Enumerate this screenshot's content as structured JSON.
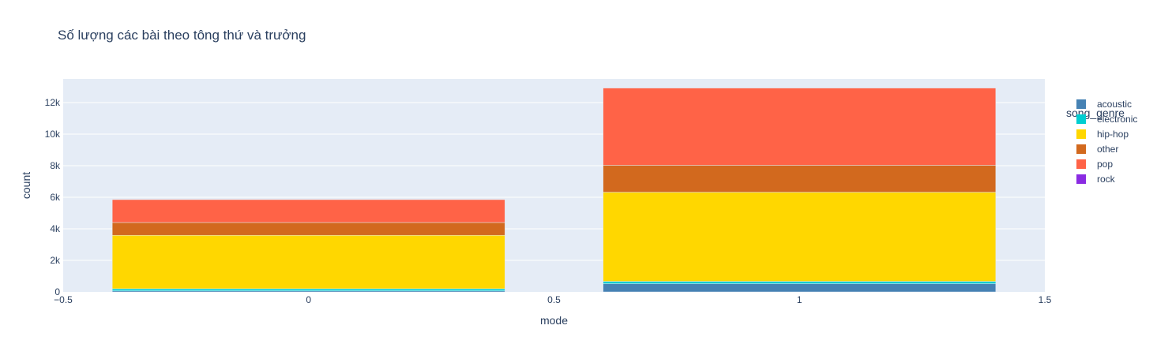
{
  "chart_data": {
    "type": "bar",
    "barmode": "stack",
    "title": "Số lượng các bài theo tông thứ và trưởng",
    "xlabel": "mode",
    "ylabel": "count",
    "xlim": [
      -0.5,
      1.5
    ],
    "ylim": [
      0,
      13500
    ],
    "x_ticks": [
      {
        "value": -0.5,
        "label": "−0.5"
      },
      {
        "value": 0,
        "label": "0"
      },
      {
        "value": 0.5,
        "label": "0.5"
      },
      {
        "value": 1,
        "label": "1"
      },
      {
        "value": 1.5,
        "label": "1.5"
      }
    ],
    "y_ticks": [
      {
        "value": 0,
        "label": "0"
      },
      {
        "value": 2000,
        "label": "2k"
      },
      {
        "value": 4000,
        "label": "4k"
      },
      {
        "value": 6000,
        "label": "6k"
      },
      {
        "value": 8000,
        "label": "8k"
      },
      {
        "value": 10000,
        "label": "10k"
      },
      {
        "value": 12000,
        "label": "12k"
      }
    ],
    "categories": [
      0,
      1
    ],
    "bar_width": 0.8,
    "grid": true,
    "legend": {
      "title": "song_genre",
      "placement": "right"
    },
    "series": [
      {
        "name": "acoustic",
        "color": "#4682B4",
        "values": [
          70,
          520
        ]
      },
      {
        "name": "electronic",
        "color": "#00CED1",
        "values": [
          130,
          150
        ]
      },
      {
        "name": "hip-hop",
        "color": "#FFD700",
        "values": [
          3390,
          5650
        ]
      },
      {
        "name": "other",
        "color": "#D2691E",
        "values": [
          810,
          1710
        ]
      },
      {
        "name": "pop",
        "color": "#FF6347",
        "values": [
          1450,
          4890
        ]
      },
      {
        "name": "rock",
        "color": "#8A2BE2",
        "values": [
          0,
          0
        ]
      }
    ]
  }
}
